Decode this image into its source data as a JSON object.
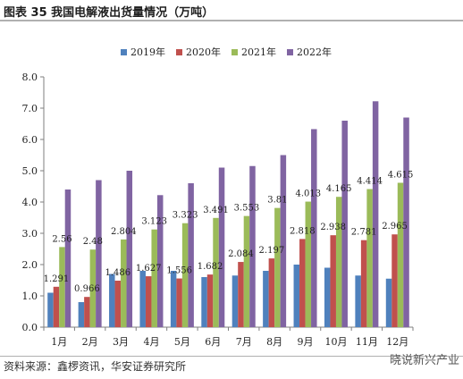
{
  "header": {
    "title": "图表 35  我国电解液出货量情况（万吨）"
  },
  "footer": {
    "source": "资料来源：鑫椤资讯，华安证券研究所",
    "watermark": "晓说新兴产业"
  },
  "colors": {
    "2019年": "#4f81bd",
    "2020年": "#c0504d",
    "2021年": "#9bbb59",
    "2022年": "#8064a2"
  },
  "chart_data": {
    "type": "bar",
    "title": "",
    "xlabel": "",
    "ylabel": "",
    "categories": [
      "1月",
      "2月",
      "3月",
      "4月",
      "5月",
      "6月",
      "7月",
      "8月",
      "9月",
      "10月",
      "11月",
      "12月"
    ],
    "ylim": [
      0,
      8
    ],
    "yticks": [
      "0.0",
      "1.0",
      "2.0",
      "3.0",
      "4.0",
      "5.0",
      "6.0",
      "7.0",
      "8.0"
    ],
    "grid": false,
    "legend_position": "top-center",
    "series": [
      {
        "name": "2019年",
        "values": [
          1.1,
          0.8,
          1.7,
          1.8,
          1.8,
          1.6,
          1.65,
          1.8,
          2.0,
          1.9,
          1.65,
          1.55
        ]
      },
      {
        "name": "2020年",
        "values": [
          1.291,
          0.966,
          1.486,
          1.627,
          1.556,
          1.682,
          2.084,
          2.197,
          2.818,
          2.938,
          2.781,
          2.965
        ]
      },
      {
        "name": "2021年",
        "values": [
          2.56,
          2.48,
          2.804,
          3.123,
          3.323,
          3.491,
          3.553,
          3.81,
          4.013,
          4.165,
          4.414,
          4.615
        ]
      },
      {
        "name": "2022年",
        "values": [
          4.4,
          4.7,
          5.0,
          4.22,
          4.6,
          5.1,
          5.15,
          5.5,
          6.33,
          6.6,
          7.22,
          6.7
        ]
      }
    ],
    "data_labels": {
      "2020年": [
        "1.291",
        "0.966",
        "1.486",
        "1.627",
        "1.556",
        "1.682",
        "2.084",
        "2.197",
        "2.818",
        "2.938",
        "2.781",
        "2.965"
      ],
      "2021年": [
        "2.56",
        "2.48",
        "2.804",
        "3.123",
        "3.323",
        "3.491",
        "3.553",
        "3.81",
        "4.013",
        "4.165",
        "4.414",
        "4.615"
      ]
    }
  }
}
